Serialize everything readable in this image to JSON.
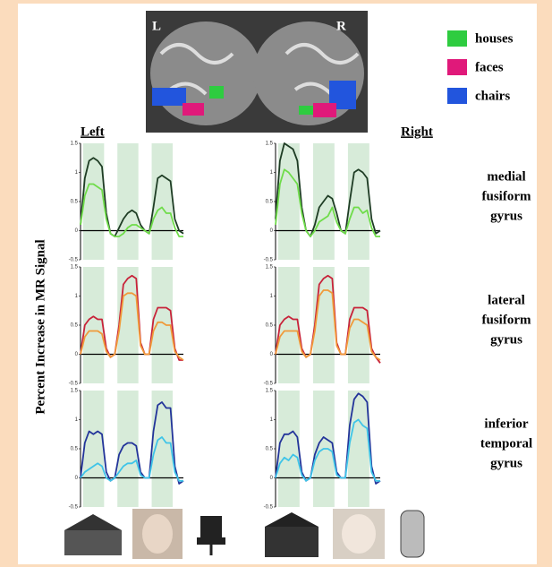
{
  "figure": {
    "brain_labels": [
      "L",
      "R"
    ],
    "legend": [
      {
        "label": "houses",
        "color": "#2ecc40"
      },
      {
        "label": "faces",
        "color": "#e0197a"
      },
      {
        "label": "chairs",
        "color": "#2255dd"
      }
    ],
    "column_titles": [
      "Left",
      "Right"
    ],
    "y_axis_label": "Percent Increase in MR Signal",
    "row_labels": [
      [
        "medial",
        "fusiform",
        "gyrus"
      ],
      [
        "lateral",
        "fusiform",
        "gyrus"
      ],
      [
        "inferior",
        "temporal",
        "gyrus"
      ]
    ]
  },
  "chart_data": [
    {
      "type": "line",
      "ylim": [
        -0.5,
        1.5
      ],
      "yticks": [
        -0.5,
        0,
        0.5,
        1,
        1.5
      ],
      "series": [
        {
          "color": "#1f3d25",
          "values": [
            0.1,
            0.9,
            1.2,
            1.25,
            1.2,
            1.1,
            0.3,
            -0.05,
            -0.1,
            0.05,
            0.2,
            0.3,
            0.35,
            0.3,
            0.1,
            0.0,
            -0.05,
            0.4,
            0.9,
            0.95,
            0.9,
            0.85,
            0.2,
            0.0,
            -0.05
          ]
        },
        {
          "color": "#6fdc4a",
          "values": [
            0.1,
            0.6,
            0.8,
            0.8,
            0.75,
            0.7,
            0.2,
            -0.05,
            -0.1,
            -0.1,
            -0.05,
            0.05,
            0.1,
            0.1,
            0.05,
            0.0,
            -0.05,
            0.2,
            0.35,
            0.4,
            0.3,
            0.3,
            0.05,
            -0.1,
            -0.1
          ]
        }
      ]
    },
    {
      "type": "line",
      "ylim": [
        -0.5,
        1.5
      ],
      "yticks": [
        -0.5,
        0,
        0.5,
        1,
        1.5
      ],
      "series": [
        {
          "color": "#1f3d25",
          "values": [
            0.2,
            1.2,
            1.5,
            1.45,
            1.4,
            1.2,
            0.4,
            0.0,
            -0.1,
            0.1,
            0.4,
            0.5,
            0.6,
            0.55,
            0.3,
            0.0,
            -0.05,
            0.5,
            1.0,
            1.05,
            1.0,
            0.9,
            0.2,
            -0.05,
            0.0
          ]
        },
        {
          "color": "#6fdc4a",
          "values": [
            0.1,
            0.8,
            1.05,
            1.0,
            0.9,
            0.8,
            0.3,
            0.0,
            -0.1,
            0.0,
            0.15,
            0.2,
            0.25,
            0.4,
            0.15,
            0.0,
            -0.05,
            0.2,
            0.4,
            0.4,
            0.3,
            0.35,
            0.05,
            -0.1,
            -0.1
          ]
        }
      ]
    },
    {
      "type": "line",
      "ylim": [
        -0.5,
        1.5
      ],
      "yticks": [
        -0.5,
        0,
        0.5,
        1,
        1.5
      ],
      "series": [
        {
          "color": "#c8233a",
          "values": [
            0.0,
            0.5,
            0.6,
            0.65,
            0.6,
            0.6,
            0.1,
            -0.05,
            0.0,
            0.5,
            1.2,
            1.3,
            1.35,
            1.3,
            0.2,
            0.0,
            0.0,
            0.6,
            0.8,
            0.8,
            0.8,
            0.75,
            0.1,
            -0.1,
            -0.1
          ]
        },
        {
          "color": "#f09a3a",
          "values": [
            0.0,
            0.3,
            0.4,
            0.4,
            0.4,
            0.35,
            0.05,
            -0.05,
            0.0,
            0.4,
            1.0,
            1.05,
            1.05,
            1.0,
            0.15,
            0.0,
            0.0,
            0.4,
            0.55,
            0.55,
            0.5,
            0.5,
            0.05,
            -0.05,
            -0.1
          ]
        }
      ]
    },
    {
      "type": "line",
      "ylim": [
        -0.5,
        1.5
      ],
      "yticks": [
        -0.5,
        0,
        0.5,
        1,
        1.5
      ],
      "series": [
        {
          "color": "#c8233a",
          "values": [
            0.0,
            0.5,
            0.6,
            0.65,
            0.6,
            0.6,
            0.1,
            -0.05,
            0.0,
            0.5,
            1.2,
            1.3,
            1.35,
            1.3,
            0.2,
            0.0,
            0.0,
            0.6,
            0.8,
            0.8,
            0.8,
            0.75,
            0.1,
            -0.05,
            -0.15
          ]
        },
        {
          "color": "#f09a3a",
          "values": [
            0.0,
            0.3,
            0.4,
            0.4,
            0.4,
            0.4,
            0.05,
            -0.05,
            0.0,
            0.4,
            1.0,
            1.1,
            1.1,
            1.05,
            0.15,
            0.0,
            0.0,
            0.45,
            0.6,
            0.6,
            0.55,
            0.5,
            0.05,
            -0.05,
            -0.1
          ]
        }
      ]
    },
    {
      "type": "line",
      "ylim": [
        -0.5,
        1.5
      ],
      "yticks": [
        -0.5,
        0,
        0.5,
        1,
        1.5
      ],
      "series": [
        {
          "color": "#23349a",
          "values": [
            0.0,
            0.6,
            0.8,
            0.75,
            0.8,
            0.75,
            0.1,
            -0.05,
            0.0,
            0.4,
            0.55,
            0.6,
            0.6,
            0.55,
            0.1,
            0.0,
            0.0,
            0.8,
            1.25,
            1.3,
            1.2,
            1.2,
            0.2,
            -0.1,
            -0.05
          ]
        },
        {
          "color": "#3fc4e8",
          "values": [
            0.0,
            0.1,
            0.15,
            0.2,
            0.25,
            0.2,
            0.0,
            -0.05,
            0.0,
            0.1,
            0.2,
            0.25,
            0.25,
            0.3,
            0.05,
            0.0,
            0.0,
            0.4,
            0.65,
            0.7,
            0.6,
            0.6,
            0.1,
            -0.05,
            -0.05
          ]
        }
      ]
    },
    {
      "type": "line",
      "ylim": [
        -0.5,
        1.5
      ],
      "yticks": [
        -0.5,
        0,
        0.5,
        1,
        1.5
      ],
      "series": [
        {
          "color": "#23349a",
          "values": [
            0.0,
            0.6,
            0.75,
            0.75,
            0.8,
            0.7,
            0.1,
            -0.05,
            0.0,
            0.4,
            0.6,
            0.7,
            0.65,
            0.6,
            0.1,
            0.0,
            0.0,
            0.9,
            1.35,
            1.45,
            1.4,
            1.3,
            0.2,
            -0.1,
            -0.05
          ]
        },
        {
          "color": "#3fc4e8",
          "values": [
            0.0,
            0.25,
            0.35,
            0.3,
            0.4,
            0.35,
            0.05,
            -0.05,
            0.0,
            0.3,
            0.45,
            0.5,
            0.5,
            0.45,
            0.05,
            0.0,
            0.0,
            0.6,
            0.95,
            1.0,
            0.9,
            0.85,
            0.1,
            -0.05,
            -0.05
          ]
        }
      ]
    }
  ]
}
